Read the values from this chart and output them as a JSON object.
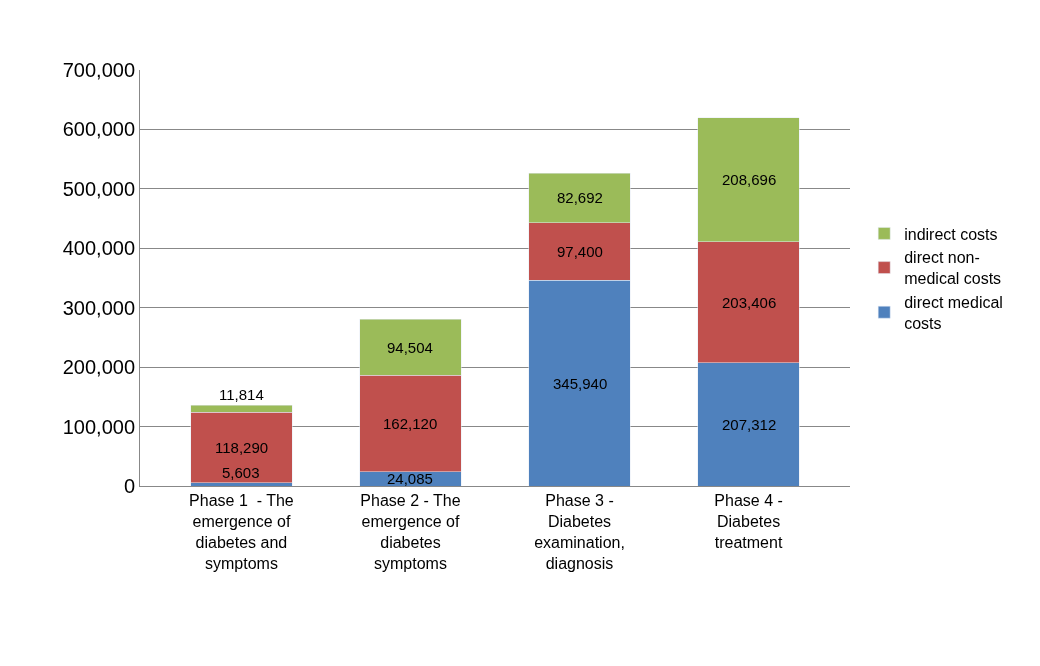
{
  "chart_data": {
    "type": "bar",
    "stacked": true,
    "categories": [
      "Phase 1  - The emergence of diabetes and symptoms",
      "Phase 2 - The emergence of diabetes symptoms",
      "Phase 3 - Diabetes examination, diagnosis",
      "Phase 4 - Diabetes treatment"
    ],
    "series": [
      {
        "name": "direct medical costs",
        "color": "#4f81bd",
        "values": [
          5603,
          24085,
          345940,
          207312
        ],
        "value_labels": [
          "5,603",
          "24,085",
          "345,940",
          "207,312"
        ]
      },
      {
        "name": "direct non-medical costs",
        "color": "#c0504d",
        "values": [
          118290,
          162120,
          97400,
          203406
        ],
        "value_labels": [
          "118,290",
          "162,120",
          "97,400",
          "203,406"
        ]
      },
      {
        "name": "indirect costs",
        "color": "#9bbb59",
        "values": [
          11814,
          94504,
          82692,
          208696
        ],
        "value_labels": [
          "11,814",
          "94,504",
          "82,692",
          "208,696"
        ]
      }
    ],
    "ylim": [
      0,
      700000
    ],
    "yticks": [
      {
        "value": 0,
        "label": "0"
      },
      {
        "value": 100000,
        "label": "100,000"
      },
      {
        "value": 200000,
        "label": "200,000"
      },
      {
        "value": 300000,
        "label": "300,000"
      },
      {
        "value": 400000,
        "label": "400,000"
      },
      {
        "value": 500000,
        "label": "500,000"
      },
      {
        "value": 600000,
        "label": "600,000"
      },
      {
        "value": 700000,
        "label": "700,000"
      }
    ],
    "grid": "y",
    "legend": "right"
  }
}
